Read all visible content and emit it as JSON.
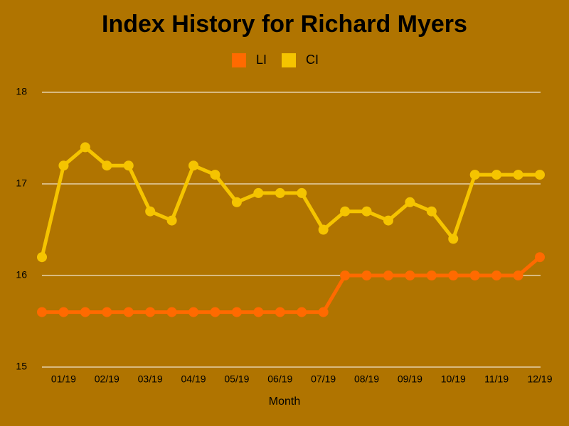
{
  "chart_data": {
    "type": "line",
    "title": "Index History for Richard Myers",
    "x_label": "Month",
    "categories": [
      null,
      "01/19",
      null,
      "02/19",
      null,
      "03/19",
      null,
      "04/19",
      null,
      "05/19",
      null,
      "06/19",
      null,
      "07/19",
      null,
      "08/19",
      null,
      "09/19",
      null,
      "10/19",
      null,
      "11/19",
      null,
      "12/19"
    ],
    "series": [
      {
        "name": "LI",
        "color": "#ff6a00",
        "values": [
          15.6,
          15.6,
          15.6,
          15.6,
          15.6,
          15.6,
          15.6,
          15.6,
          15.6,
          15.6,
          15.6,
          15.6,
          15.6,
          15.6,
          16,
          16,
          16,
          16,
          16,
          16,
          16,
          16,
          16,
          16.2
        ]
      },
      {
        "name": "CI",
        "color": "#f5c400",
        "values": [
          16.2,
          17.2,
          17.4,
          17.2,
          17.2,
          16.7,
          16.6,
          17.2,
          17.1,
          16.8,
          16.9,
          16.9,
          16.9,
          16.5,
          16.7,
          16.7,
          16.6,
          16.8,
          16.7,
          16.4,
          17.1,
          17.1,
          17.1,
          17.1
        ]
      }
    ],
    "ylim": [
      15,
      18
    ],
    "yticks": [
      15,
      16,
      17,
      18
    ],
    "grid": true,
    "background": "#b07400",
    "legend": "top"
  }
}
